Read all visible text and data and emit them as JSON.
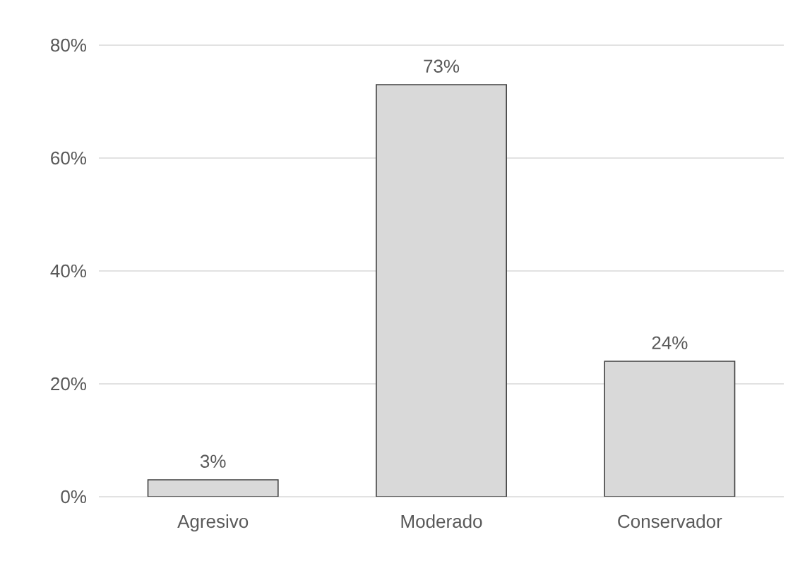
{
  "chart_data": {
    "type": "bar",
    "categories": [
      "Agresivo",
      "Moderado",
      "Conservador"
    ],
    "values": [
      3,
      73,
      24
    ],
    "value_labels": [
      "3%",
      "73%",
      "24%"
    ],
    "color": "#d9d9d9",
    "ylim": [
      0,
      80
    ],
    "yticks": [
      {
        "value": 0,
        "label": "0%"
      },
      {
        "value": 20,
        "label": "20%"
      },
      {
        "value": 40,
        "label": "40%"
      },
      {
        "value": 60,
        "label": "60%"
      },
      {
        "value": 80,
        "label": "80%"
      }
    ],
    "grid": "y"
  }
}
